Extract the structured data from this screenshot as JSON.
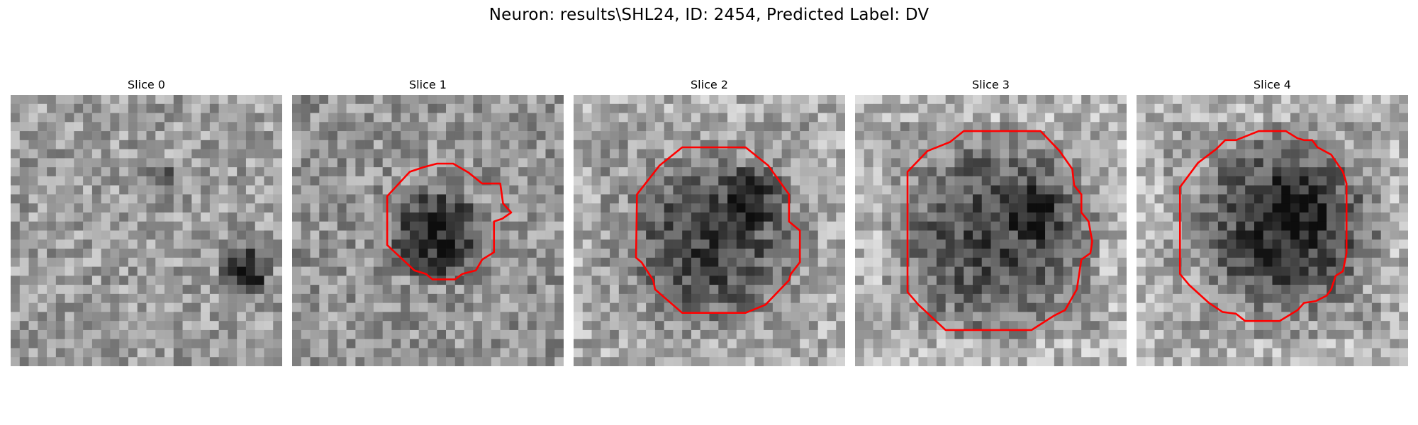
{
  "figure": {
    "title": "Neuron: results\\SHL24, ID: 2454, Predicted Label: DV"
  },
  "slices": [
    {
      "title": "Slice 0",
      "has_contour": false
    },
    {
      "title": "Slice 1",
      "has_contour": true
    },
    {
      "title": "Slice 2",
      "has_contour": true
    },
    {
      "title": "Slice 3",
      "has_contour": true
    },
    {
      "title": "Slice 4",
      "has_contour": true
    }
  ],
  "colors": {
    "contour": "#ff0000",
    "background": "#ffffff"
  },
  "colormap": "gray"
}
